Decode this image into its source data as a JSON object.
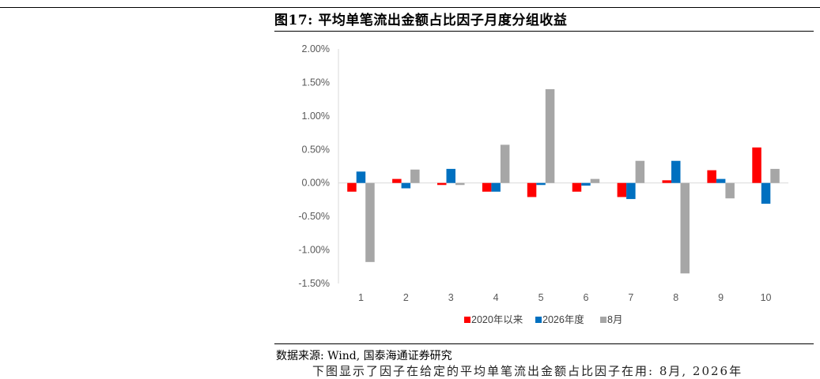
{
  "figure": {
    "title": "图17: 平均单笔流出金额占比因子月度分组收益",
    "source": "数据来源: Wind, 国泰海通证券研究",
    "body_text_fragment": "下图显示了因子在给定的平均单笔流出金额占比因子在用: 8月, 2026年"
  },
  "chart_data": {
    "type": "bar",
    "categories": [
      "1",
      "2",
      "3",
      "4",
      "5",
      "6",
      "7",
      "8",
      "9",
      "10"
    ],
    "y_ticks": [
      "2.00%",
      "1.50%",
      "1.00%",
      "0.50%",
      "0.00%",
      "-0.50%",
      "-1.00%",
      "-1.50%"
    ],
    "ylim": [
      -1.5,
      2.0
    ],
    "y_unit": "%",
    "grid": false,
    "legend_position": "bottom",
    "series": [
      {
        "name": "2020年以来",
        "color": "#ff0000",
        "values": [
          -0.13,
          0.06,
          -0.03,
          -0.13,
          -0.21,
          -0.13,
          -0.21,
          0.04,
          0.19,
          0.53
        ]
      },
      {
        "name": "2026年度",
        "color": "#0070c0",
        "values": [
          0.17,
          -0.08,
          0.21,
          -0.13,
          -0.03,
          -0.04,
          -0.24,
          0.33,
          0.06,
          -0.31
        ]
      },
      {
        "name": "8月",
        "color": "#a6a6a6",
        "values": [
          -1.18,
          0.2,
          -0.03,
          0.57,
          1.4,
          0.06,
          0.33,
          -1.35,
          -0.23,
          0.21
        ]
      }
    ]
  }
}
